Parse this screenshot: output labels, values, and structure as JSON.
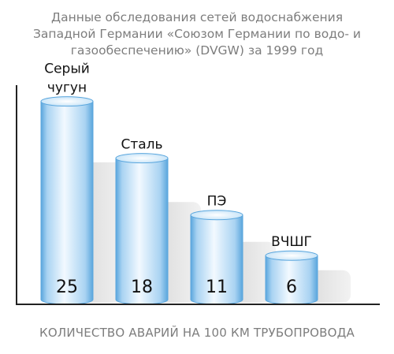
{
  "title_lines": [
    "Данные обследования сетей водоснабжения",
    "Западной Германии «Союзом Германии по водо- и",
    "газообеспечению» (DVGW) за 1999 год"
  ],
  "chart_data": {
    "type": "bar",
    "categories": [
      [
        "Серый",
        "чугун"
      ],
      [
        "Сталь"
      ],
      [
        "ПЭ"
      ],
      [
        "ВЧШГ"
      ]
    ],
    "values": [
      25,
      18,
      11,
      6
    ],
    "xlabel": "КОЛИЧЕСТВО АВАРИЙ НА 100 КМ ТРУБОПРОВОДА",
    "ylabel": "",
    "ylim": [
      0,
      27
    ],
    "grid": false,
    "legend": "none",
    "colors": {
      "bar_edge": "#5aa6dd",
      "bar_center": "#f2f9ff",
      "bar_side": "#cfe7f9",
      "shadow": "#e6e6e6",
      "axis": "#222222"
    }
  }
}
